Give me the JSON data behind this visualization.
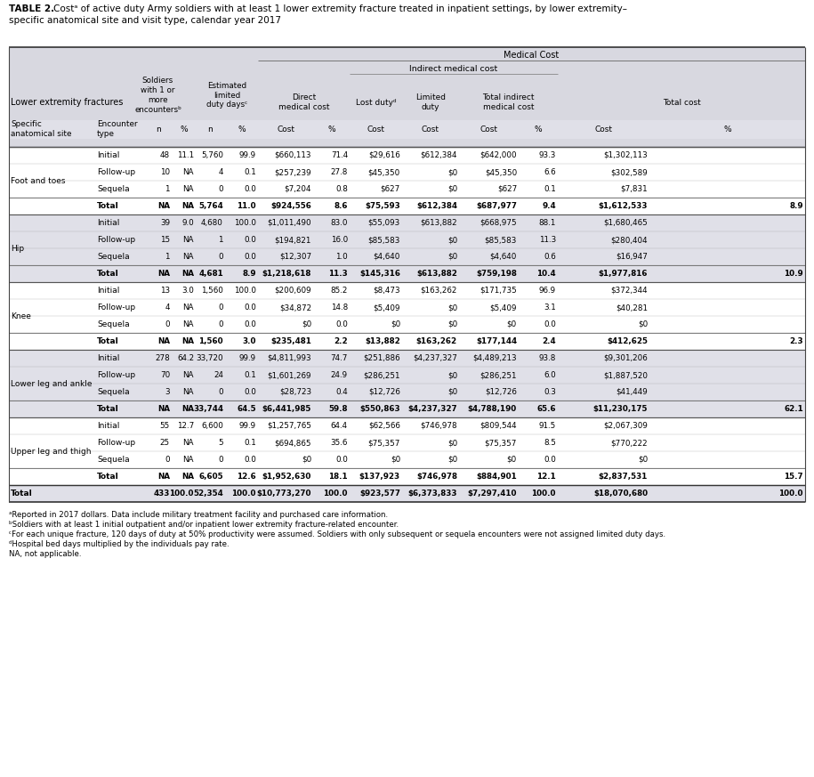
{
  "footnotes": [
    "ᵃReported in 2017 dollars. Data include military treatment facility and purchased care information.",
    "ᵇSoldiers with at least 1 initial outpatient and/or inpatient lower extremity fracture-related encounter.",
    "ᶜFor each unique fracture, 120 days of duty at 50% productivity were assumed. Soldiers with only subsequent or sequela encounters were not assigned limited duty days.",
    "ᵈHospital bed days multiplied by the individuals pay rate.",
    "NA, not applicable."
  ],
  "sections": [
    {
      "site": "Foot and toes",
      "rows": [
        {
          "type": "Initial",
          "n1": "48",
          "p1": "11.1",
          "n2": "5,760",
          "p2": "99.9",
          "dmc": "$660,113",
          "dmc_p": "71.4",
          "ld": "$29,616",
          "ltd": "$612,384",
          "timc": "$642,000",
          "timc_p": "93.3",
          "tc": "$1,302,113",
          "tc_p": ""
        },
        {
          "type": "Follow-up",
          "n1": "10",
          "p1": "NA",
          "n2": "4",
          "p2": "0.1",
          "dmc": "$257,239",
          "dmc_p": "27.8",
          "ld": "$45,350",
          "ltd": "$0",
          "timc": "$45,350",
          "timc_p": "6.6",
          "tc": "$302,589",
          "tc_p": ""
        },
        {
          "type": "Sequela",
          "n1": "1",
          "p1": "NA",
          "n2": "0",
          "p2": "0.0",
          "dmc": "$7,204",
          "dmc_p": "0.8",
          "ld": "$627",
          "ltd": "$0",
          "timc": "$627",
          "timc_p": "0.1",
          "tc": "$7,831",
          "tc_p": ""
        },
        {
          "type": "Total",
          "n1": "NA",
          "p1": "NA",
          "n2": "5,764",
          "p2": "11.0",
          "dmc": "$924,556",
          "dmc_p": "8.6",
          "ld": "$75,593",
          "ltd": "$612,384",
          "timc": "$687,977",
          "timc_p": "9.4",
          "tc": "$1,612,533",
          "tc_p": "8.9"
        }
      ]
    },
    {
      "site": "Hip",
      "rows": [
        {
          "type": "Initial",
          "n1": "39",
          "p1": "9.0",
          "n2": "4,680",
          "p2": "100.0",
          "dmc": "$1,011,490",
          "dmc_p": "83.0",
          "ld": "$55,093",
          "ltd": "$613,882",
          "timc": "$668,975",
          "timc_p": "88.1",
          "tc": "$1,680,465",
          "tc_p": ""
        },
        {
          "type": "Follow-up",
          "n1": "15",
          "p1": "NA",
          "n2": "1",
          "p2": "0.0",
          "dmc": "$194,821",
          "dmc_p": "16.0",
          "ld": "$85,583",
          "ltd": "$0",
          "timc": "$85,583",
          "timc_p": "11.3",
          "tc": "$280,404",
          "tc_p": ""
        },
        {
          "type": "Sequela",
          "n1": "1",
          "p1": "NA",
          "n2": "0",
          "p2": "0.0",
          "dmc": "$12,307",
          "dmc_p": "1.0",
          "ld": "$4,640",
          "ltd": "$0",
          "timc": "$4,640",
          "timc_p": "0.6",
          "tc": "$16,947",
          "tc_p": ""
        },
        {
          "type": "Total",
          "n1": "NA",
          "p1": "NA",
          "n2": "4,681",
          "p2": "8.9",
          "dmc": "$1,218,618",
          "dmc_p": "11.3",
          "ld": "$145,316",
          "ltd": "$613,882",
          "timc": "$759,198",
          "timc_p": "10.4",
          "tc": "$1,977,816",
          "tc_p": "10.9"
        }
      ]
    },
    {
      "site": "Knee",
      "rows": [
        {
          "type": "Initial",
          "n1": "13",
          "p1": "3.0",
          "n2": "1,560",
          "p2": "100.0",
          "dmc": "$200,609",
          "dmc_p": "85.2",
          "ld": "$8,473",
          "ltd": "$163,262",
          "timc": "$171,735",
          "timc_p": "96.9",
          "tc": "$372,344",
          "tc_p": ""
        },
        {
          "type": "Follow-up",
          "n1": "4",
          "p1": "NA",
          "n2": "0",
          "p2": "0.0",
          "dmc": "$34,872",
          "dmc_p": "14.8",
          "ld": "$5,409",
          "ltd": "$0",
          "timc": "$5,409",
          "timc_p": "3.1",
          "tc": "$40,281",
          "tc_p": ""
        },
        {
          "type": "Sequela",
          "n1": "0",
          "p1": "NA",
          "n2": "0",
          "p2": "0.0",
          "dmc": "$0",
          "dmc_p": "0.0",
          "ld": "$0",
          "ltd": "$0",
          "timc": "$0",
          "timc_p": "0.0",
          "tc": "$0",
          "tc_p": ""
        },
        {
          "type": "Total",
          "n1": "NA",
          "p1": "NA",
          "n2": "1,560",
          "p2": "3.0",
          "dmc": "$235,481",
          "dmc_p": "2.2",
          "ld": "$13,882",
          "ltd": "$163,262",
          "timc": "$177,144",
          "timc_p": "2.4",
          "tc": "$412,625",
          "tc_p": "2.3"
        }
      ]
    },
    {
      "site": "Lower leg and ankle",
      "rows": [
        {
          "type": "Initial",
          "n1": "278",
          "p1": "64.2",
          "n2": "33,720",
          "p2": "99.9",
          "dmc": "$4,811,993",
          "dmc_p": "74.7",
          "ld": "$251,886",
          "ltd": "$4,237,327",
          "timc": "$4,489,213",
          "timc_p": "93.8",
          "tc": "$9,301,206",
          "tc_p": ""
        },
        {
          "type": "Follow-up",
          "n1": "70",
          "p1": "NA",
          "n2": "24",
          "p2": "0.1",
          "dmc": "$1,601,269",
          "dmc_p": "24.9",
          "ld": "$286,251",
          "ltd": "$0",
          "timc": "$286,251",
          "timc_p": "6.0",
          "tc": "$1,887,520",
          "tc_p": ""
        },
        {
          "type": "Sequela",
          "n1": "3",
          "p1": "NA",
          "n2": "0",
          "p2": "0.0",
          "dmc": "$28,723",
          "dmc_p": "0.4",
          "ld": "$12,726",
          "ltd": "$0",
          "timc": "$12,726",
          "timc_p": "0.3",
          "tc": "$41,449",
          "tc_p": ""
        },
        {
          "type": "Total",
          "n1": "NA",
          "p1": "NA",
          "n2": "33,744",
          "p2": "64.5",
          "dmc": "$6,441,985",
          "dmc_p": "59.8",
          "ld": "$550,863",
          "ltd": "$4,237,327",
          "timc": "$4,788,190",
          "timc_p": "65.6",
          "tc": "$11,230,175",
          "tc_p": "62.1"
        }
      ]
    },
    {
      "site": "Upper leg and thigh",
      "rows": [
        {
          "type": "Initial",
          "n1": "55",
          "p1": "12.7",
          "n2": "6,600",
          "p2": "99.9",
          "dmc": "$1,257,765",
          "dmc_p": "64.4",
          "ld": "$62,566",
          "ltd": "$746,978",
          "timc": "$809,544",
          "timc_p": "91.5",
          "tc": "$2,067,309",
          "tc_p": ""
        },
        {
          "type": "Follow-up",
          "n1": "25",
          "p1": "NA",
          "n2": "5",
          "p2": "0.1",
          "dmc": "$694,865",
          "dmc_p": "35.6",
          "ld": "$75,357",
          "ltd": "$0",
          "timc": "$75,357",
          "timc_p": "8.5",
          "tc": "$770,222",
          "tc_p": ""
        },
        {
          "type": "Sequela",
          "n1": "0",
          "p1": "NA",
          "n2": "0",
          "p2": "0.0",
          "dmc": "$0",
          "dmc_p": "0.0",
          "ld": "$0",
          "ltd": "$0",
          "timc": "$0",
          "timc_p": "0.0",
          "tc": "$0",
          "tc_p": ""
        },
        {
          "type": "Total",
          "n1": "NA",
          "p1": "NA",
          "n2": "6,605",
          "p2": "12.6",
          "dmc": "$1,952,630",
          "dmc_p": "18.1",
          "ld": "$137,923",
          "ltd": "$746,978",
          "timc": "$884,901",
          "timc_p": "12.1",
          "tc": "$2,837,531",
          "tc_p": "15.7"
        }
      ]
    }
  ],
  "total_row": {
    "type": "Total",
    "n1": "433",
    "p1": "100.0",
    "n2": "52,354",
    "p2": "100.0",
    "dmc": "$10,773,270",
    "dmc_p": "100.0",
    "ld": "$923,577",
    "ltd": "$6,373,833",
    "timc": "$7,297,410",
    "timc_p": "100.0",
    "tc": "$18,070,680",
    "tc_p": "100.0"
  },
  "bg_light": "#E0E0E8",
  "bg_white": "#FFFFFF",
  "header_bg": "#D8D8E0",
  "line_dark": "#555555",
  "line_light": "#999999"
}
